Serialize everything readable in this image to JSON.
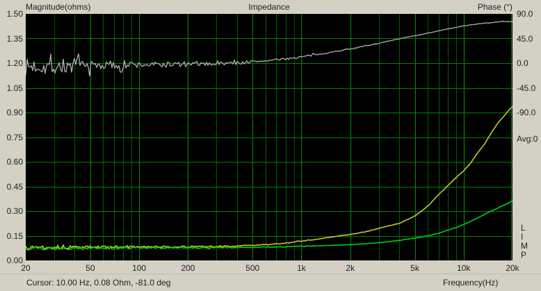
{
  "header": {
    "left_axis_title": "Magnitude(ohms)",
    "title": "Impedance",
    "right_axis_title": "Phase (°)"
  },
  "right_panel": {
    "avg_label": "Avg:0",
    "app_letters": [
      "L",
      "I",
      "M",
      "P"
    ]
  },
  "status_bar": {
    "cursor_text": "Cursor: 10.00 Hz, 0.08 Ohm, -81.0 deg",
    "x_axis_title": "Frequency(Hz)"
  },
  "chart_data": {
    "type": "line",
    "title": "Impedance",
    "x_axis": {
      "label": "Frequency(Hz)",
      "scale": "log",
      "min": 20,
      "max": 20000,
      "tick_labels": [
        "20",
        "50",
        "100",
        "200",
        "500",
        "1k",
        "2k",
        "5k",
        "10k",
        "20k"
      ],
      "tick_values": [
        20,
        50,
        100,
        200,
        500,
        1000,
        2000,
        5000,
        10000,
        20000
      ]
    },
    "y_left": {
      "label": "Magnitude(ohms)",
      "min": 0.0,
      "max": 1.5,
      "tick_labels": [
        "1.50",
        "1.35",
        "1.20",
        "1.05",
        "0.90",
        "0.75",
        "0.60",
        "0.45",
        "0.30",
        "0.15",
        "0.00"
      ],
      "tick_values": [
        1.5,
        1.35,
        1.2,
        1.05,
        0.9,
        0.75,
        0.6,
        0.45,
        0.3,
        0.15,
        0.0
      ]
    },
    "y_right": {
      "label": "Phase (°)",
      "min": -90,
      "max": 90,
      "tick_labels": [
        "90.0",
        "45.0",
        "0.0",
        "-45.0",
        "-90.0"
      ],
      "tick_values": [
        90,
        45,
        0,
        -45,
        -90
      ],
      "left_equivalent_min": 0.9,
      "left_equivalent_max": 1.5
    },
    "grid": {
      "background": "#000000",
      "major_color": "#009000",
      "minor_color": "#005c00",
      "horizontal_color": "#008000",
      "minor_freqs": [
        30,
        40,
        60,
        70,
        80,
        90,
        300,
        400,
        600,
        700,
        800,
        900,
        3000,
        4000,
        6000,
        7000,
        8000,
        9000
      ]
    },
    "series": [
      {
        "name": "phase",
        "axis": "right",
        "color": "#b2b2b2",
        "width": 1.3,
        "anchors": [
          [
            20,
            -7
          ],
          [
            24,
            -5
          ],
          [
            28,
            -6
          ],
          [
            34,
            -5
          ],
          [
            42,
            -5
          ],
          [
            55,
            -4
          ],
          [
            75,
            -3.5
          ],
          [
            100,
            -3
          ],
          [
            140,
            -2.5
          ],
          [
            200,
            -2
          ],
          [
            280,
            -1
          ],
          [
            400,
            0.5
          ],
          [
            550,
            3.5
          ],
          [
            750,
            7
          ],
          [
            1000,
            11.5
          ],
          [
            1300,
            16.5
          ],
          [
            1700,
            22.5
          ],
          [
            2200,
            28.5
          ],
          [
            2800,
            34.5
          ],
          [
            3600,
            41.5
          ],
          [
            4500,
            47.5
          ],
          [
            5500,
            52.5
          ],
          [
            6500,
            57
          ],
          [
            8000,
            62.5
          ],
          [
            10000,
            68
          ],
          [
            12000,
            71.5
          ],
          [
            14000,
            73.5
          ],
          [
            16000,
            75
          ],
          [
            17500,
            76
          ],
          [
            19000,
            76.2
          ],
          [
            20000,
            75.6
          ]
        ],
        "noise": {
          "seed": 7,
          "bands": [
            [
              45,
              15
            ],
            [
              90,
              8.5
            ],
            [
              200,
              5.5
            ],
            [
              500,
              3.2
            ],
            [
              1200,
              1.8
            ],
            [
              3000,
              0.9
            ],
            [
              20001,
              0.4
            ]
          ],
          "spike_chance": 0.05,
          "spike_gain": 2.3
        }
      },
      {
        "name": "magnitude-yellow",
        "axis": "left",
        "color": "#c6c832",
        "width": 1.6,
        "anchors": [
          [
            20,
            0.083
          ],
          [
            50,
            0.081
          ],
          [
            100,
            0.082
          ],
          [
            200,
            0.083
          ],
          [
            300,
            0.085
          ],
          [
            400,
            0.088
          ],
          [
            500,
            0.092
          ],
          [
            650,
            0.098
          ],
          [
            800,
            0.105
          ],
          [
            1000,
            0.118
          ],
          [
            1300,
            0.132
          ],
          [
            1600,
            0.145
          ],
          [
            2000,
            0.158
          ],
          [
            2500,
            0.175
          ],
          [
            3000,
            0.195
          ],
          [
            4000,
            0.225
          ],
          [
            5000,
            0.27
          ],
          [
            6000,
            0.33
          ],
          [
            7000,
            0.4
          ],
          [
            8000,
            0.455
          ],
          [
            9000,
            0.505
          ],
          [
            10000,
            0.545
          ],
          [
            11000,
            0.59
          ],
          [
            12000,
            0.645
          ],
          [
            13500,
            0.71
          ],
          [
            15000,
            0.785
          ],
          [
            16500,
            0.845
          ],
          [
            18000,
            0.885
          ],
          [
            19000,
            0.915
          ],
          [
            20000,
            0.935
          ]
        ],
        "noise": {
          "seed": 13,
          "bands": [
            [
              45,
              0.012
            ],
            [
              100,
              0.008
            ],
            [
              400,
              0.005
            ],
            [
              1200,
              0.0028
            ],
            [
              20001,
              0.0013
            ]
          ],
          "spike_chance": 0.03,
          "spike_gain": 1.8
        }
      },
      {
        "name": "magnitude-green",
        "axis": "left",
        "color": "#00d20a",
        "width": 1.6,
        "anchors": [
          [
            20,
            0.073
          ],
          [
            50,
            0.074
          ],
          [
            100,
            0.076
          ],
          [
            200,
            0.077
          ],
          [
            300,
            0.078
          ],
          [
            500,
            0.08
          ],
          [
            700,
            0.082
          ],
          [
            1000,
            0.086
          ],
          [
            1500,
            0.091
          ],
          [
            2000,
            0.096
          ],
          [
            2500,
            0.102
          ],
          [
            3000,
            0.108
          ],
          [
            4000,
            0.122
          ],
          [
            5000,
            0.136
          ],
          [
            6000,
            0.15
          ],
          [
            7000,
            0.165
          ],
          [
            8000,
            0.185
          ],
          [
            9000,
            0.2
          ],
          [
            10000,
            0.218
          ],
          [
            12000,
            0.255
          ],
          [
            14000,
            0.29
          ],
          [
            16000,
            0.315
          ],
          [
            18000,
            0.34
          ],
          [
            20000,
            0.362
          ]
        ],
        "noise": {
          "seed": 29,
          "bands": [
            [
              45,
              0.011
            ],
            [
              100,
              0.007
            ],
            [
              400,
              0.0045
            ],
            [
              1200,
              0.0026
            ],
            [
              20001,
              0.0011
            ]
          ],
          "spike_chance": 0.03,
          "spike_gain": 1.8
        }
      }
    ]
  }
}
